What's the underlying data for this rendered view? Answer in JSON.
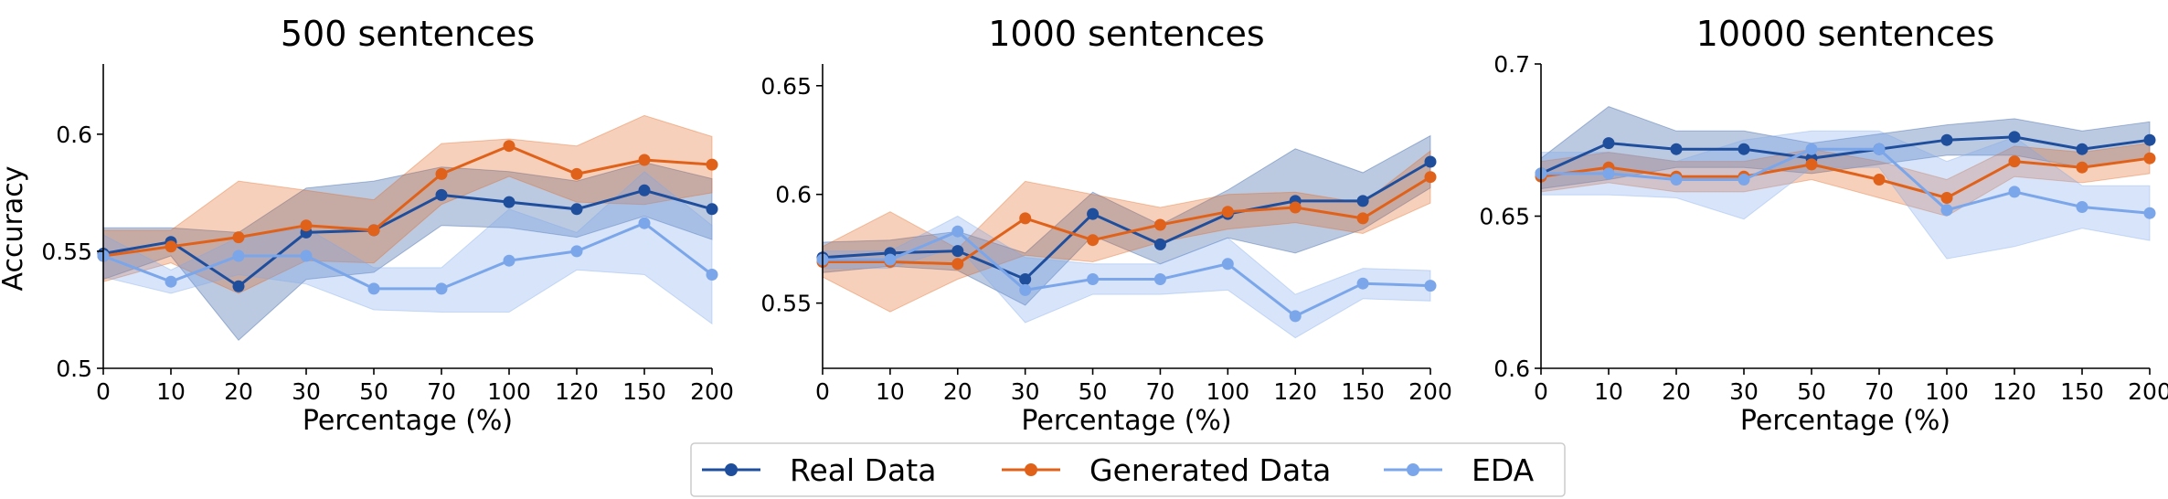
{
  "chart_data": {
    "type": "line",
    "shared_ylabel": "Accuracy",
    "categories": [
      "0",
      "10",
      "20",
      "30",
      "50",
      "70",
      "100",
      "120",
      "150",
      "200"
    ],
    "legend": {
      "placement": "bottom-center",
      "entries": [
        "Real Data",
        "Generated Data",
        "EDA"
      ]
    },
    "series_colors": {
      "Real Data": "#1f4e9c",
      "Generated Data": "#e0621a",
      "EDA": "#7ba6ea"
    },
    "panels": [
      {
        "title": "500 sentences",
        "xlabel": "Percentage (%)",
        "ylabel": "Accuracy",
        "ylim": [
          0.5,
          0.63
        ],
        "yticks": [
          0.5,
          0.55,
          0.6
        ],
        "ytick_labels": [
          "0.5",
          "0.55",
          "0.6"
        ],
        "series": [
          {
            "name": "Real Data",
            "values": [
              0.549,
              0.554,
              0.535,
              0.558,
              0.559,
              0.574,
              0.571,
              0.568,
              0.576,
              0.568
            ],
            "lower": [
              0.538,
              0.548,
              0.512,
              0.538,
              0.541,
              0.561,
              0.56,
              0.556,
              0.565,
              0.555
            ],
            "upper": [
              0.56,
              0.56,
              0.558,
              0.577,
              0.58,
              0.586,
              0.584,
              0.58,
              0.588,
              0.581
            ]
          },
          {
            "name": "Generated Data",
            "values": [
              0.548,
              0.552,
              0.556,
              0.561,
              0.559,
              0.583,
              0.595,
              0.583,
              0.589,
              0.587
            ],
            "lower": [
              0.537,
              0.545,
              0.532,
              0.546,
              0.545,
              0.57,
              0.582,
              0.571,
              0.57,
              0.575
            ],
            "upper": [
              0.559,
              0.559,
              0.58,
              0.576,
              0.572,
              0.596,
              0.598,
              0.595,
              0.608,
              0.599
            ]
          },
          {
            "name": "EDA",
            "values": [
              0.548,
              0.537,
              0.548,
              0.548,
              0.534,
              0.534,
              0.546,
              0.55,
              0.562,
              0.54
            ],
            "lower": [
              0.539,
              0.532,
              0.54,
              0.536,
              0.525,
              0.524,
              0.524,
              0.542,
              0.54,
              0.519
            ],
            "upper": [
              0.557,
              0.542,
              0.556,
              0.56,
              0.543,
              0.543,
              0.568,
              0.558,
              0.584,
              0.561
            ]
          }
        ]
      },
      {
        "title": "1000 sentences",
        "xlabel": "Percentage (%)",
        "ylabel": "",
        "ylim": [
          0.52,
          0.66
        ],
        "yticks": [
          0.55,
          0.6,
          0.65
        ],
        "ytick_labels": [
          "0.55",
          "0.6",
          "0.65"
        ],
        "series": [
          {
            "name": "Real Data",
            "values": [
              0.571,
              0.573,
              0.574,
              0.561,
              0.591,
              0.577,
              0.591,
              0.597,
              0.597,
              0.615
            ],
            "lower": [
              0.564,
              0.567,
              0.565,
              0.549,
              0.581,
              0.568,
              0.58,
              0.573,
              0.584,
              0.603
            ],
            "upper": [
              0.578,
              0.579,
              0.583,
              0.573,
              0.601,
              0.586,
              0.602,
              0.621,
              0.61,
              0.627
            ]
          },
          {
            "name": "Generated Data",
            "values": [
              0.569,
              0.569,
              0.568,
              0.589,
              0.579,
              0.586,
              0.592,
              0.594,
              0.589,
              0.608
            ],
            "lower": [
              0.562,
              0.546,
              0.561,
              0.572,
              0.569,
              0.578,
              0.584,
              0.587,
              0.582,
              0.596
            ],
            "upper": [
              0.576,
              0.592,
              0.575,
              0.606,
              0.6,
              0.594,
              0.6,
              0.601,
              0.596,
              0.62
            ]
          },
          {
            "name": "EDA",
            "values": [
              0.57,
              0.57,
              0.583,
              0.556,
              0.561,
              0.561,
              0.568,
              0.544,
              0.559,
              0.558
            ],
            "lower": [
              0.566,
              0.566,
              0.576,
              0.541,
              0.554,
              0.554,
              0.556,
              0.534,
              0.552,
              0.551
            ],
            "upper": [
              0.574,
              0.574,
              0.59,
              0.571,
              0.568,
              0.568,
              0.58,
              0.554,
              0.566,
              0.565
            ]
          }
        ]
      },
      {
        "title": "10000 sentences",
        "xlabel": "Percentage (%)",
        "ylabel": "",
        "ylim": [
          0.6,
          0.7
        ],
        "yticks": [
          0.6,
          0.65,
          0.7
        ],
        "ytick_labels": [
          "0.6",
          "0.65",
          "0.7"
        ],
        "series": [
          {
            "name": "Real Data",
            "values": [
              0.664,
              0.674,
              0.672,
              0.672,
              0.669,
              0.672,
              0.675,
              0.676,
              0.672,
              0.675
            ],
            "lower": [
              0.659,
              0.662,
              0.666,
              0.666,
              0.664,
              0.667,
              0.67,
              0.67,
              0.666,
              0.669
            ],
            "upper": [
              0.669,
              0.686,
              0.678,
              0.678,
              0.674,
              0.677,
              0.68,
              0.682,
              0.678,
              0.681
            ]
          },
          {
            "name": "Generated Data",
            "values": [
              0.663,
              0.666,
              0.663,
              0.663,
              0.667,
              0.662,
              0.656,
              0.668,
              0.666,
              0.669
            ],
            "lower": [
              0.658,
              0.661,
              0.658,
              0.658,
              0.662,
              0.656,
              0.65,
              0.663,
              0.661,
              0.664
            ],
            "upper": [
              0.668,
              0.671,
              0.668,
              0.668,
              0.672,
              0.668,
              0.662,
              0.673,
              0.671,
              0.674
            ]
          },
          {
            "name": "EDA",
            "values": [
              0.664,
              0.664,
              0.662,
              0.662,
              0.672,
              0.672,
              0.652,
              0.658,
              0.653,
              0.651
            ],
            "lower": [
              0.657,
              0.657,
              0.656,
              0.649,
              0.666,
              0.666,
              0.636,
              0.64,
              0.646,
              0.642
            ],
            "upper": [
              0.671,
              0.671,
              0.668,
              0.675,
              0.678,
              0.678,
              0.668,
              0.676,
              0.66,
              0.66
            ]
          }
        ]
      }
    ]
  }
}
